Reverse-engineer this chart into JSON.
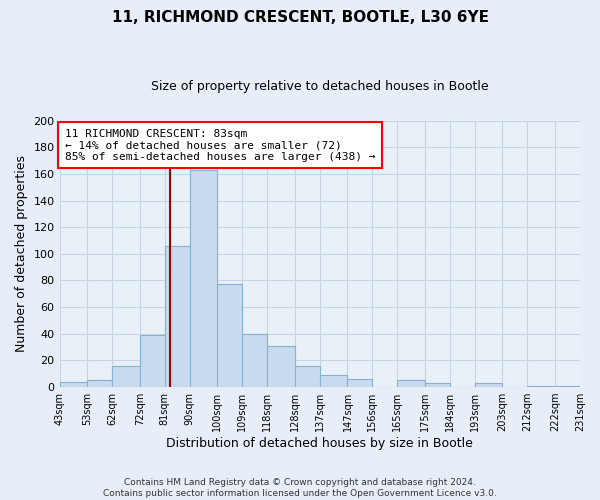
{
  "title": "11, RICHMOND CRESCENT, BOOTLE, L30 6YE",
  "subtitle": "Size of property relative to detached houses in Bootle",
  "xlabel": "Distribution of detached houses by size in Bootle",
  "ylabel": "Number of detached properties",
  "bar_edges": [
    43,
    53,
    62,
    72,
    81,
    90,
    100,
    109,
    118,
    128,
    137,
    147,
    156,
    165,
    175,
    184,
    193,
    203,
    212,
    222,
    231
  ],
  "bar_heights": [
    4,
    5,
    16,
    39,
    106,
    163,
    77,
    40,
    31,
    16,
    9,
    6,
    0,
    5,
    3,
    0,
    3,
    0,
    1,
    1
  ],
  "bar_color": "#c8daee",
  "bar_edge_color": "#8ab0d0",
  "vline_x": 83,
  "vline_color": "#aa0000",
  "ylim": [
    0,
    200
  ],
  "yticks": [
    0,
    20,
    40,
    60,
    80,
    100,
    120,
    140,
    160,
    180,
    200
  ],
  "tick_labels": [
    "43sqm",
    "53sqm",
    "62sqm",
    "72sqm",
    "81sqm",
    "90sqm",
    "100sqm",
    "109sqm",
    "118sqm",
    "128sqm",
    "137sqm",
    "147sqm",
    "156sqm",
    "165sqm",
    "175sqm",
    "184sqm",
    "193sqm",
    "203sqm",
    "212sqm",
    "222sqm",
    "231sqm"
  ],
  "annotation_line1": "11 RICHMOND CRESCENT: 83sqm",
  "annotation_line2": "← 14% of detached houses are smaller (72)",
  "annotation_line3": "85% of semi-detached houses are larger (438) →",
  "footer_text": "Contains HM Land Registry data © Crown copyright and database right 2024.\nContains public sector information licensed under the Open Government Licence v3.0.",
  "bg_color": "#e8eef8",
  "plot_bg_color": "#e8f0f8",
  "grid_color": "#c8d4e4"
}
